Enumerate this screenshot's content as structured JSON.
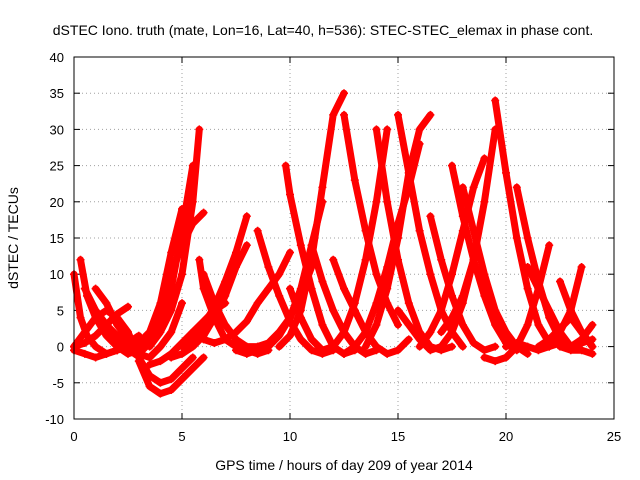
{
  "chart_data": {
    "type": "line",
    "title": "dSTEC Iono. truth (mate, Lon=16, Lat=40, h=536): STEC-STEC_elemax in phase cont.",
    "xlabel": "GPS time / hours of day 209 of year 2014",
    "ylabel": "dSTEC  / TECUs",
    "xlim": [
      0,
      25
    ],
    "ylim": [
      -10,
      40
    ],
    "xticks": [
      0,
      5,
      10,
      15,
      20,
      25
    ],
    "yticks": [
      -10,
      -5,
      0,
      5,
      10,
      15,
      20,
      25,
      30,
      35,
      40
    ],
    "grid": true,
    "marker": "plus",
    "color": "#ff0000",
    "series": [
      {
        "x": [
          0.0,
          0.3,
          0.6,
          1.0,
          1.5,
          2.0,
          2.5,
          3.0
        ],
        "y": [
          10,
          4,
          1.5,
          0,
          -1,
          -0.5,
          0.5,
          1.5
        ]
      },
      {
        "x": [
          0.0,
          0.5,
          1.0,
          1.5,
          2.0,
          2.5
        ],
        "y": [
          0,
          2,
          4,
          5,
          4,
          2
        ]
      },
      {
        "x": [
          0.3,
          0.6,
          1.0,
          1.5,
          2.0,
          2.5,
          3.0
        ],
        "y": [
          12,
          7,
          4,
          1.5,
          0,
          -1,
          -0.5
        ]
      },
      {
        "x": [
          0.0,
          0.5,
          1.0,
          1.5,
          2.0,
          2.5
        ],
        "y": [
          -0.5,
          -1,
          -1.5,
          -1,
          -0.5,
          0
        ]
      },
      {
        "x": [
          0.5,
          1.0,
          1.5,
          2.0,
          2.5,
          3.0
        ],
        "y": [
          8,
          5,
          3,
          1,
          0,
          -0.5
        ]
      },
      {
        "x": [
          1.0,
          1.5,
          2.0,
          2.5,
          3.0
        ],
        "y": [
          8,
          6,
          3,
          1,
          0
        ]
      },
      {
        "x": [
          0.0,
          0.5,
          1.0,
          1.5,
          2.0,
          2.5
        ],
        "y": [
          0,
          0.5,
          1.5,
          3,
          4.5,
          5.5
        ]
      },
      {
        "x": [
          1.0,
          1.5,
          2.0,
          2.5,
          3.0,
          3.5,
          4.0,
          4.5,
          5.0
        ],
        "y": [
          4,
          3,
          1.5,
          0.5,
          -1,
          -1.5,
          0,
          2,
          6
        ]
      },
      {
        "x": [
          2.5,
          3.0,
          3.5,
          4.0,
          4.5,
          5.0,
          5.5
        ],
        "y": [
          2,
          -1.5,
          -4,
          -5,
          -4.5,
          -3,
          -1.5
        ]
      },
      {
        "x": [
          3.0,
          3.5,
          4.0,
          4.5,
          5.0,
          5.5,
          6.0
        ],
        "y": [
          -2,
          -5.5,
          -6.5,
          -6,
          -4.5,
          -3,
          -1.5
        ]
      },
      {
        "x": [
          2.5,
          3.0,
          3.5,
          4.0,
          4.5,
          5.0
        ],
        "y": [
          0,
          0.5,
          2,
          6,
          13,
          19
        ]
      },
      {
        "x": [
          3.0,
          3.5,
          4.0,
          4.5,
          5.0,
          5.5
        ],
        "y": [
          -1,
          0.5,
          3,
          8,
          16,
          25
        ]
      },
      {
        "x": [
          3.5,
          4.0,
          4.5,
          5.0,
          5.5,
          5.8
        ],
        "y": [
          0,
          2,
          5,
          10,
          20,
          30
        ]
      },
      {
        "x": [
          2.8,
          3.2,
          3.6,
          4.0,
          4.5,
          5.0,
          5.5,
          6.0
        ],
        "y": [
          -1,
          0,
          2,
          5,
          10,
          14,
          17,
          18.5
        ]
      },
      {
        "x": [
          3.5,
          4.0,
          4.5,
          5.0,
          5.5,
          6.0,
          6.5,
          7.0
        ],
        "y": [
          -2.5,
          -2,
          -1,
          0.5,
          2,
          3.5,
          5,
          6
        ]
      },
      {
        "x": [
          4.5,
          5.0,
          5.5,
          6.0,
          6.5,
          7.0,
          7.5,
          8.0
        ],
        "y": [
          -1.5,
          -1,
          0,
          1.5,
          4,
          7,
          11,
          14
        ]
      },
      {
        "x": [
          5.0,
          5.5,
          6.0,
          6.5,
          7.0,
          7.5,
          8.0
        ],
        "y": [
          0,
          1,
          3,
          5.5,
          9,
          13,
          18
        ]
      },
      {
        "x": [
          5.5,
          6.0,
          6.5,
          7.0,
          7.5,
          8.0,
          8.5,
          9.0,
          9.5,
          10.0
        ],
        "y": [
          2,
          1,
          0.5,
          1,
          2,
          3.5,
          6,
          8,
          10,
          13
        ]
      },
      {
        "x": [
          5.8,
          6.0,
          6.5,
          7.0,
          7.5,
          8.0,
          8.5,
          9.0
        ],
        "y": [
          12,
          8,
          4,
          1,
          0,
          -0.5,
          -1,
          -0.5
        ]
      },
      {
        "x": [
          6.0,
          6.5,
          7.0,
          7.5,
          8.0,
          8.5,
          9.0,
          9.5,
          10.0,
          10.5,
          11.0
        ],
        "y": [
          10,
          6,
          3,
          1,
          0,
          0,
          0.5,
          2,
          4,
          7,
          11
        ]
      },
      {
        "x": [
          8.5,
          9.0,
          9.5,
          10.0,
          10.5,
          11.0,
          11.5,
          12.0
        ],
        "y": [
          16,
          11,
          7,
          3.5,
          1,
          -0.5,
          -1,
          -0.5
        ]
      },
      {
        "x": [
          7.5,
          8.0,
          8.5,
          9.0,
          9.5,
          10.0,
          10.5,
          11.0,
          11.5
        ],
        "y": [
          -0.5,
          -1,
          -0.5,
          0,
          1.5,
          4,
          8,
          14,
          20
        ]
      },
      {
        "x": [
          9.5,
          10.0,
          10.5,
          11.0,
          11.5,
          12.0,
          12.5
        ],
        "y": [
          0,
          1.5,
          5,
          12,
          22,
          32,
          35
        ]
      },
      {
        "x": [
          9.8,
          10.0,
          10.5,
          11.0,
          11.5,
          12.0,
          12.5,
          13.0
        ],
        "y": [
          25,
          21,
          14,
          8,
          3,
          0,
          -1,
          -0.5
        ]
      },
      {
        "x": [
          10.0,
          10.5,
          11.0,
          11.5,
          12.0,
          12.5,
          13.0,
          13.5,
          14.0,
          14.5
        ],
        "y": [
          8,
          4,
          1,
          -0.5,
          0,
          2,
          6,
          12,
          20,
          30
        ]
      },
      {
        "x": [
          11.0,
          11.5,
          12.0,
          12.5,
          13.0,
          13.5,
          14.0
        ],
        "y": [
          14,
          9,
          5,
          2,
          0,
          -1,
          -0.5
        ]
      },
      {
        "x": [
          12.0,
          12.5,
          13.0,
          13.5,
          14.0,
          14.5,
          15.0,
          15.5
        ],
        "y": [
          12,
          8,
          5,
          2,
          0,
          -1,
          -0.5,
          1
        ]
      },
      {
        "x": [
          12.5,
          13.0,
          13.5,
          14.0,
          14.5,
          15.0
        ],
        "y": [
          32,
          23,
          16,
          10,
          6,
          3
        ]
      },
      {
        "x": [
          12.5,
          13.0,
          13.5,
          14.0,
          14.5,
          15.0,
          15.5,
          16.0
        ],
        "y": [
          -1,
          0,
          2,
          6,
          11,
          17,
          22,
          28
        ]
      },
      {
        "x": [
          13.5,
          14.0,
          14.5,
          15.0,
          15.5,
          16.0,
          16.5
        ],
        "y": [
          0,
          3,
          8,
          15,
          24,
          30,
          32
        ]
      },
      {
        "x": [
          14.0,
          14.5,
          15.0,
          15.5,
          16.0,
          16.5,
          17.0,
          17.5
        ],
        "y": [
          30,
          20,
          12,
          6,
          2,
          0,
          -0.5,
          0
        ]
      },
      {
        "x": [
          15.0,
          15.5,
          16.0,
          16.5,
          17.0,
          17.5,
          18.0
        ],
        "y": [
          32,
          24,
          16,
          10,
          5,
          2,
          0
        ]
      },
      {
        "x": [
          15.0,
          15.5,
          16.0,
          16.5,
          17.0,
          17.5,
          18.0,
          18.5
        ],
        "y": [
          5,
          3,
          1,
          -0.5,
          0,
          2,
          6,
          12
        ]
      },
      {
        "x": [
          16.0,
          16.5,
          17.0,
          17.5,
          18.0,
          18.5,
          19.0
        ],
        "y": [
          0,
          2,
          5,
          10,
          16,
          22,
          26
        ]
      },
      {
        "x": [
          16.5,
          17.0,
          17.5,
          18.0,
          18.5,
          19.0,
          19.5
        ],
        "y": [
          18,
          12,
          7,
          3,
          0.5,
          -0.5,
          0
        ]
      },
      {
        "x": [
          17.0,
          17.5,
          18.0,
          18.5,
          19.0,
          19.5
        ],
        "y": [
          2,
          4,
          7,
          12,
          20,
          30
        ]
      },
      {
        "x": [
          17.5,
          18.0,
          18.5,
          19.0,
          19.5,
          20.0,
          20.5
        ],
        "y": [
          25,
          18,
          12,
          7,
          3,
          0.5,
          -0.5
        ]
      },
      {
        "x": [
          18.0,
          18.5,
          19.0,
          19.5,
          20.0,
          20.5,
          21.0
        ],
        "y": [
          22,
          16,
          10,
          5,
          2,
          0,
          -1
        ]
      },
      {
        "x": [
          19.5,
          20.0,
          20.5,
          21.0,
          21.5,
          22.0
        ],
        "y": [
          34,
          24,
          15,
          8,
          3,
          0.5
        ]
      },
      {
        "x": [
          19.0,
          19.5,
          20.0,
          20.5,
          21.0,
          21.5,
          22.0
        ],
        "y": [
          -1.5,
          -2,
          -1.5,
          0,
          3,
          8,
          14
        ]
      },
      {
        "x": [
          20.5,
          21.0,
          21.5,
          22.0,
          22.5,
          23.0
        ],
        "y": [
          22,
          15,
          9,
          4,
          1,
          0
        ]
      },
      {
        "x": [
          21.0,
          21.5,
          22.0,
          22.5,
          23.0,
          23.5,
          24.0
        ],
        "y": [
          11,
          8,
          5,
          2,
          0,
          0.5,
          1
        ]
      },
      {
        "x": [
          21.5,
          22.0,
          22.5,
          23.0,
          23.5,
          24.0
        ],
        "y": [
          0,
          1,
          2.5,
          4,
          2,
          0
        ]
      },
      {
        "x": [
          22.0,
          22.5,
          23.0,
          23.5,
          24.0
        ],
        "y": [
          0,
          0.5,
          0,
          1,
          3
        ]
      },
      {
        "x": [
          22.5,
          23.0,
          23.5,
          24.0
        ],
        "y": [
          9,
          5,
          2,
          0
        ]
      },
      {
        "x": [
          20.0,
          20.5,
          21.0,
          21.5,
          22.0,
          22.5,
          23.0,
          23.5
        ],
        "y": [
          0,
          0.5,
          0,
          -0.5,
          0,
          2,
          5,
          11
        ]
      },
      {
        "x": [
          22.5,
          23.0,
          23.5,
          24.0
        ],
        "y": [
          0,
          -0.5,
          -0.5,
          -1
        ]
      }
    ]
  }
}
